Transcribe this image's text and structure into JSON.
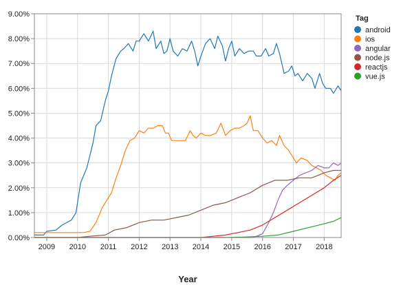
{
  "chart_data": {
    "type": "line",
    "xlabel": "Year",
    "ylabel": "",
    "x_range": [
      2008.6,
      2018.55
    ],
    "ylim": [
      0,
      9
    ],
    "grid": true,
    "legend_placement": "top-right",
    "legend_title": "Tag",
    "x_ticks": [
      "2009",
      "2010",
      "2011",
      "2012",
      "2013",
      "2014",
      "2015",
      "2016",
      "2017",
      "2018"
    ],
    "y_ticks": [
      "0.00%",
      "1.00%",
      "2.00%",
      "3.00%",
      "4.00%",
      "5.00%",
      "6.00%",
      "7.00%",
      "8.00%",
      "9.00%"
    ],
    "series": [
      {
        "name": "android",
        "color": "#1f77b4",
        "points": [
          [
            2008.6,
            0.1
          ],
          [
            2008.9,
            0.1
          ],
          [
            2009.0,
            0.25
          ],
          [
            2009.3,
            0.3
          ],
          [
            2009.5,
            0.5
          ],
          [
            2009.8,
            0.7
          ],
          [
            2009.95,
            1.0
          ],
          [
            2010.1,
            2.2
          ],
          [
            2010.3,
            2.8
          ],
          [
            2010.5,
            3.8
          ],
          [
            2010.6,
            4.5
          ],
          [
            2010.75,
            4.7
          ],
          [
            2010.9,
            5.5
          ],
          [
            2011.0,
            5.9
          ],
          [
            2011.1,
            6.5
          ],
          [
            2011.25,
            7.2
          ],
          [
            2011.4,
            7.5
          ],
          [
            2011.5,
            7.6
          ],
          [
            2011.65,
            7.8
          ],
          [
            2011.8,
            7.5
          ],
          [
            2011.9,
            7.9
          ],
          [
            2012.0,
            7.9
          ],
          [
            2012.15,
            8.2
          ],
          [
            2012.3,
            7.9
          ],
          [
            2012.45,
            8.3
          ],
          [
            2012.55,
            7.6
          ],
          [
            2012.7,
            7.9
          ],
          [
            2012.8,
            7.4
          ],
          [
            2012.9,
            7.5
          ],
          [
            2013.0,
            8.0
          ],
          [
            2013.1,
            7.5
          ],
          [
            2013.25,
            7.3
          ],
          [
            2013.4,
            7.6
          ],
          [
            2013.55,
            7.5
          ],
          [
            2013.7,
            7.9
          ],
          [
            2013.8,
            7.5
          ],
          [
            2013.9,
            6.9
          ],
          [
            2014.0,
            7.3
          ],
          [
            2014.15,
            7.8
          ],
          [
            2014.3,
            8.0
          ],
          [
            2014.45,
            7.6
          ],
          [
            2014.55,
            8.1
          ],
          [
            2014.7,
            7.7
          ],
          [
            2014.8,
            7.1
          ],
          [
            2014.9,
            7.6
          ],
          [
            2015.0,
            7.9
          ],
          [
            2015.1,
            7.3
          ],
          [
            2015.25,
            7.6
          ],
          [
            2015.4,
            7.4
          ],
          [
            2015.55,
            7.5
          ],
          [
            2015.7,
            7.5
          ],
          [
            2015.8,
            7.3
          ],
          [
            2015.95,
            7.3
          ],
          [
            2016.1,
            7.6
          ],
          [
            2016.2,
            7.3
          ],
          [
            2016.35,
            7.4
          ],
          [
            2016.45,
            7.8
          ],
          [
            2016.55,
            7.4
          ],
          [
            2016.7,
            6.6
          ],
          [
            2016.85,
            6.7
          ],
          [
            2016.95,
            6.9
          ],
          [
            2017.05,
            6.5
          ],
          [
            2017.15,
            6.6
          ],
          [
            2017.3,
            6.3
          ],
          [
            2017.45,
            6.6
          ],
          [
            2017.6,
            6.4
          ],
          [
            2017.7,
            6.0
          ],
          [
            2017.85,
            6.6
          ],
          [
            2017.95,
            6.2
          ],
          [
            2018.05,
            6.0
          ],
          [
            2018.2,
            6.0
          ],
          [
            2018.3,
            5.8
          ],
          [
            2018.45,
            6.1
          ],
          [
            2018.55,
            5.9
          ]
        ]
      },
      {
        "name": "ios",
        "color": "#ff7f0e",
        "points": [
          [
            2008.6,
            0.2
          ],
          [
            2008.9,
            0.2
          ],
          [
            2009.2,
            0.2
          ],
          [
            2009.5,
            0.2
          ],
          [
            2009.9,
            0.2
          ],
          [
            2010.2,
            0.2
          ],
          [
            2010.4,
            0.25
          ],
          [
            2010.6,
            0.6
          ],
          [
            2010.8,
            1.2
          ],
          [
            2010.95,
            1.5
          ],
          [
            2011.1,
            1.8
          ],
          [
            2011.25,
            2.4
          ],
          [
            2011.4,
            2.9
          ],
          [
            2011.55,
            3.5
          ],
          [
            2011.7,
            3.9
          ],
          [
            2011.85,
            4.0
          ],
          [
            2012.0,
            4.3
          ],
          [
            2012.15,
            4.2
          ],
          [
            2012.3,
            4.4
          ],
          [
            2012.45,
            4.4
          ],
          [
            2012.6,
            4.5
          ],
          [
            2012.75,
            4.5
          ],
          [
            2012.85,
            4.2
          ],
          [
            2012.95,
            4.2
          ],
          [
            2013.05,
            3.9
          ],
          [
            2013.2,
            3.9
          ],
          [
            2013.35,
            3.9
          ],
          [
            2013.5,
            3.9
          ],
          [
            2013.65,
            4.3
          ],
          [
            2013.75,
            4.1
          ],
          [
            2013.85,
            4.0
          ],
          [
            2014.0,
            4.2
          ],
          [
            2014.15,
            4.1
          ],
          [
            2014.3,
            4.1
          ],
          [
            2014.5,
            4.2
          ],
          [
            2014.65,
            4.6
          ],
          [
            2014.8,
            4.1
          ],
          [
            2014.95,
            4.3
          ],
          [
            2015.1,
            4.4
          ],
          [
            2015.25,
            4.4
          ],
          [
            2015.4,
            4.5
          ],
          [
            2015.5,
            4.6
          ],
          [
            2015.6,
            4.9
          ],
          [
            2015.7,
            4.3
          ],
          [
            2015.85,
            4.3
          ],
          [
            2016.0,
            4.0
          ],
          [
            2016.15,
            3.8
          ],
          [
            2016.3,
            3.9
          ],
          [
            2016.45,
            3.7
          ],
          [
            2016.55,
            4.1
          ],
          [
            2016.7,
            3.7
          ],
          [
            2016.85,
            3.5
          ],
          [
            2016.95,
            3.3
          ],
          [
            2017.1,
            3.0
          ],
          [
            2017.25,
            3.2
          ],
          [
            2017.45,
            3.1
          ],
          [
            2017.6,
            2.9
          ],
          [
            2017.75,
            2.8
          ],
          [
            2017.9,
            2.7
          ],
          [
            2018.05,
            2.5
          ],
          [
            2018.2,
            2.4
          ],
          [
            2018.35,
            2.3
          ],
          [
            2018.45,
            2.5
          ],
          [
            2018.55,
            2.6
          ]
        ]
      },
      {
        "name": "angular",
        "color": "#9467bd",
        "points": [
          [
            2008.6,
            0.0
          ],
          [
            2015.6,
            0.0
          ],
          [
            2015.8,
            0.05
          ],
          [
            2016.0,
            0.15
          ],
          [
            2016.2,
            0.6
          ],
          [
            2016.35,
            1.0
          ],
          [
            2016.5,
            1.5
          ],
          [
            2016.65,
            1.9
          ],
          [
            2016.8,
            2.1
          ],
          [
            2017.0,
            2.3
          ],
          [
            2017.2,
            2.5
          ],
          [
            2017.4,
            2.6
          ],
          [
            2017.6,
            2.7
          ],
          [
            2017.8,
            2.9
          ],
          [
            2018.0,
            2.8
          ],
          [
            2018.15,
            2.8
          ],
          [
            2018.3,
            3.0
          ],
          [
            2018.45,
            2.9
          ],
          [
            2018.55,
            3.0
          ]
        ]
      },
      {
        "name": "node.js",
        "color": "#8c564b",
        "points": [
          [
            2008.6,
            0.0
          ],
          [
            2010.0,
            0.0
          ],
          [
            2010.4,
            0.05
          ],
          [
            2010.9,
            0.1
          ],
          [
            2011.2,
            0.3
          ],
          [
            2011.6,
            0.4
          ],
          [
            2012.0,
            0.6
          ],
          [
            2012.4,
            0.7
          ],
          [
            2012.8,
            0.7
          ],
          [
            2013.2,
            0.8
          ],
          [
            2013.6,
            0.9
          ],
          [
            2014.0,
            1.1
          ],
          [
            2014.4,
            1.3
          ],
          [
            2014.8,
            1.4
          ],
          [
            2015.2,
            1.6
          ],
          [
            2015.6,
            1.8
          ],
          [
            2016.0,
            2.1
          ],
          [
            2016.4,
            2.3
          ],
          [
            2016.8,
            2.3
          ],
          [
            2017.2,
            2.4
          ],
          [
            2017.6,
            2.4
          ],
          [
            2018.0,
            2.6
          ],
          [
            2018.3,
            2.7
          ],
          [
            2018.55,
            2.7
          ]
        ]
      },
      {
        "name": "reactjs",
        "color": "#d62728",
        "points": [
          [
            2008.6,
            0.0
          ],
          [
            2014.0,
            0.0
          ],
          [
            2014.4,
            0.05
          ],
          [
            2014.8,
            0.1
          ],
          [
            2015.2,
            0.2
          ],
          [
            2015.6,
            0.3
          ],
          [
            2016.0,
            0.5
          ],
          [
            2016.4,
            0.8
          ],
          [
            2016.8,
            1.1
          ],
          [
            2017.2,
            1.4
          ],
          [
            2017.6,
            1.7
          ],
          [
            2018.0,
            2.0
          ],
          [
            2018.3,
            2.3
          ],
          [
            2018.55,
            2.5
          ]
        ]
      },
      {
        "name": "vue.js",
        "color": "#2ca02c",
        "points": [
          [
            2008.6,
            0.0
          ],
          [
            2014.8,
            0.0
          ],
          [
            2015.4,
            0.02
          ],
          [
            2016.0,
            0.05
          ],
          [
            2016.5,
            0.1
          ],
          [
            2017.0,
            0.25
          ],
          [
            2017.5,
            0.4
          ],
          [
            2018.0,
            0.55
          ],
          [
            2018.3,
            0.65
          ],
          [
            2018.55,
            0.8
          ]
        ]
      }
    ]
  }
}
